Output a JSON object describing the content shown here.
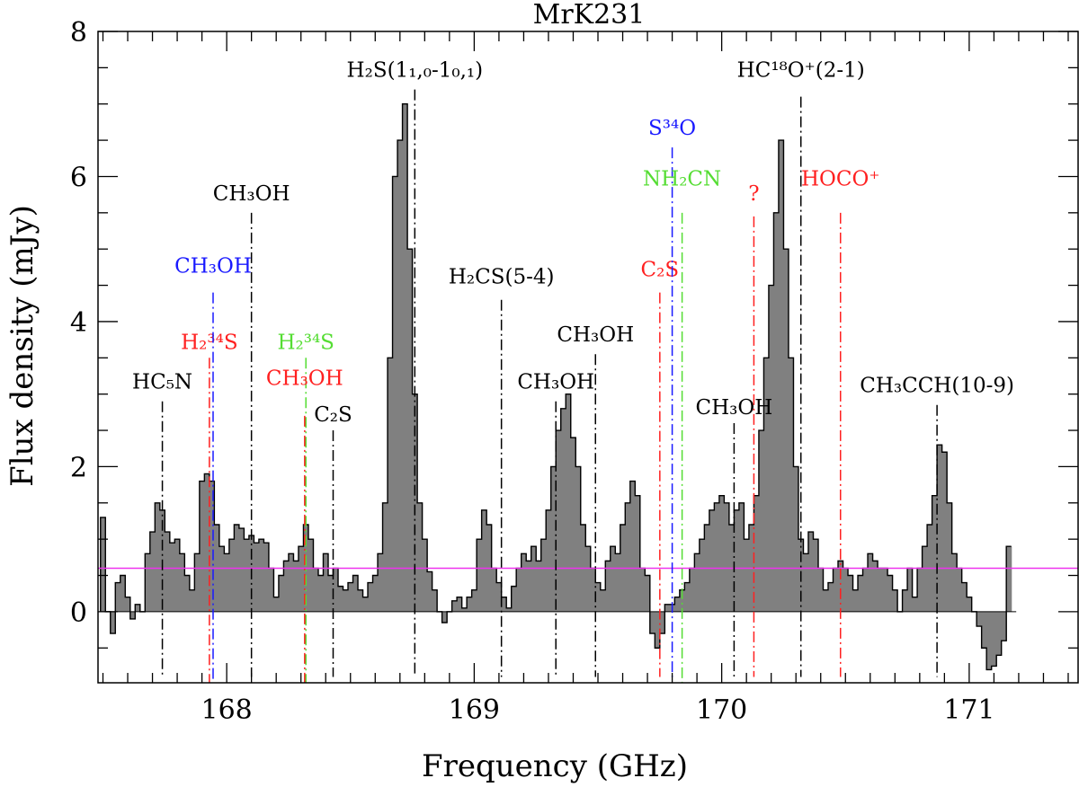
{
  "chart_data": {
    "type": "bar",
    "title": "MrK231",
    "xlabel": "Frequency (GHz)",
    "ylabel": "Flux density (mJy)",
    "xlim": [
      167.48,
      171.44
    ],
    "ylim": [
      -0.98,
      8.0
    ],
    "x_ticks": [
      168,
      169,
      170,
      171
    ],
    "y_ticks": [
      0,
      2,
      4,
      6,
      8
    ],
    "baseline": 0.6,
    "colors": {
      "fill": "#808080",
      "outline": "#000000",
      "baseline": "#ee33ee",
      "black": "#000000",
      "red": "#ff2020",
      "blue": "#1a1aff",
      "green": "#55dd33"
    },
    "series": [
      {
        "type": "histogram",
        "x": [
          167.5,
          167.52,
          167.54,
          167.56,
          167.58,
          167.6,
          167.62,
          167.64,
          167.66,
          167.68,
          167.7,
          167.72,
          167.74,
          167.76,
          167.78,
          167.8,
          167.82,
          167.84,
          167.86,
          167.88,
          167.9,
          167.92,
          167.94,
          167.96,
          167.98,
          168.0,
          168.02,
          168.04,
          168.06,
          168.08,
          168.1,
          168.12,
          168.14,
          168.16,
          168.18,
          168.2,
          168.22,
          168.24,
          168.26,
          168.28,
          168.3,
          168.32,
          168.34,
          168.36,
          168.38,
          168.4,
          168.42,
          168.44,
          168.46,
          168.48,
          168.5,
          168.52,
          168.54,
          168.56,
          168.58,
          168.6,
          168.62,
          168.64,
          168.66,
          168.68,
          168.7,
          168.72,
          168.74,
          168.76,
          168.78,
          168.8,
          168.82,
          168.84,
          168.86,
          168.88,
          168.9,
          168.92,
          168.94,
          168.96,
          168.98,
          169.0,
          169.02,
          169.04,
          169.06,
          169.08,
          169.1,
          169.12,
          169.14,
          169.16,
          169.18,
          169.2,
          169.22,
          169.24,
          169.26,
          169.28,
          169.3,
          169.32,
          169.34,
          169.36,
          169.38,
          169.4,
          169.42,
          169.44,
          169.46,
          169.48,
          169.5,
          169.52,
          169.54,
          169.56,
          169.58,
          169.6,
          169.62,
          169.64,
          169.66,
          169.68,
          169.7,
          169.72,
          169.74,
          169.76,
          169.78,
          169.8,
          169.82,
          169.84,
          169.86,
          169.88,
          169.9,
          169.92,
          169.94,
          169.96,
          169.98,
          170.0,
          170.02,
          170.04,
          170.06,
          170.08,
          170.1,
          170.12,
          170.14,
          170.16,
          170.18,
          170.2,
          170.22,
          170.24,
          170.26,
          170.28,
          170.3,
          170.32,
          170.34,
          170.36,
          170.38,
          170.4,
          170.42,
          170.44,
          170.46,
          170.48,
          170.5,
          170.52,
          170.54,
          170.56,
          170.58,
          170.6,
          170.62,
          170.64,
          170.66,
          170.68,
          170.7,
          170.72,
          170.74,
          170.76,
          170.78,
          170.8,
          170.82,
          170.84,
          170.86,
          170.88,
          170.9,
          170.92,
          170.94,
          170.96,
          170.98,
          171.0,
          171.02,
          171.04,
          171.06,
          171.08,
          171.1,
          171.12,
          171.14,
          171.16,
          171.18
        ],
        "y": [
          1.3,
          0.0,
          -0.3,
          0.4,
          0.5,
          0.2,
          -0.1,
          0.1,
          0.0,
          0.8,
          1.1,
          1.5,
          1.4,
          1.1,
          0.95,
          1.0,
          0.8,
          0.5,
          0.3,
          0.8,
          1.8,
          1.9,
          1.8,
          1.2,
          0.9,
          0.8,
          1.0,
          1.2,
          1.15,
          1.0,
          1.05,
          0.95,
          1.0,
          0.95,
          0.6,
          0.2,
          0.5,
          0.7,
          0.8,
          0.7,
          0.9,
          1.2,
          1.0,
          0.6,
          0.5,
          0.8,
          0.5,
          0.6,
          0.35,
          0.3,
          0.4,
          0.5,
          0.3,
          0.2,
          0.4,
          0.5,
          0.8,
          1.5,
          3.5,
          6.0,
          6.5,
          7.0,
          5.0,
          3.0,
          1.5,
          1.0,
          0.55,
          0.3,
          0.0,
          -0.15,
          0.0,
          0.15,
          0.2,
          0.05,
          0.2,
          0.3,
          1.0,
          1.4,
          1.2,
          0.6,
          0.4,
          0.2,
          0.05,
          0.35,
          0.6,
          0.8,
          0.7,
          0.9,
          0.7,
          1.0,
          1.4,
          2.0,
          2.5,
          2.8,
          3.0,
          2.4,
          2.0,
          1.2,
          0.9,
          0.6,
          0.4,
          0.3,
          0.7,
          0.9,
          0.8,
          1.2,
          1.5,
          1.8,
          1.6,
          0.6,
          0.5,
          -0.3,
          -0.5,
          -0.3,
          0.1,
          0.1,
          0.2,
          0.3,
          0.4,
          0.6,
          0.8,
          1.0,
          1.2,
          1.4,
          1.5,
          1.6,
          1.5,
          1.2,
          1.4,
          1.5,
          1.0,
          1.2,
          1.6,
          2.5,
          3.5,
          4.5,
          5.5,
          6.5,
          5.0,
          3.5,
          2.0,
          1.0,
          0.8,
          1.1,
          1.0,
          0.6,
          0.3,
          0.4,
          0.6,
          0.7,
          0.6,
          0.5,
          0.3,
          0.5,
          0.6,
          0.8,
          0.7,
          0.6,
          0.6,
          0.5,
          0.3,
          0.0,
          0.3,
          0.6,
          0.2,
          0.6,
          0.9,
          1.2,
          1.6,
          2.3,
          2.2,
          1.5,
          0.8,
          0.6,
          0.4,
          0.2,
          0.0,
          -0.2,
          -0.5,
          -0.8,
          -0.75,
          -0.6,
          -0.4,
          0.9
        ]
      }
    ],
    "line_markers": [
      {
        "label": "HC5N",
        "text": "HC₅N",
        "freq": 167.74,
        "color": "black",
        "top": 2.9,
        "bottom": -0.9,
        "label_y": 3.0
      },
      {
        "label": "H2 34S",
        "text": "H₂³⁴S",
        "freq": 167.93,
        "color": "red",
        "top": 3.5,
        "bottom": -0.98,
        "label_y": 3.55
      },
      {
        "label": "CH3OH",
        "text": "CH₃OH",
        "freq": 167.945,
        "color": "blue",
        "top": 4.4,
        "bottom": -0.98,
        "label_y": 4.6
      },
      {
        "label": "CH3OH",
        "text": "CH₃OH",
        "freq": 168.1,
        "color": "black",
        "top": 5.5,
        "bottom": -0.9,
        "label_y": 5.6
      },
      {
        "label": "H2 34S",
        "text": "H₂³⁴S",
        "freq": 168.32,
        "color": "green",
        "top": 3.5,
        "bottom": -0.98,
        "label_y": 3.55
      },
      {
        "label": "CH3OH",
        "text": "CH₃OH",
        "freq": 168.315,
        "color": "red",
        "top": 2.7,
        "bottom": -0.98,
        "label_y": 3.05
      },
      {
        "label": "C2S",
        "text": "C₂S",
        "freq": 168.43,
        "color": "black",
        "top": 2.5,
        "bottom": -0.9,
        "label_y": 2.55
      },
      {
        "label": "H2S(11,0-10,1)",
        "text": "H₂S(1₁,₀-1₀,₁)",
        "freq": 168.76,
        "color": "black",
        "top": 7.2,
        "bottom": -0.9,
        "label_y": 7.3
      },
      {
        "label": "H2CS(5-4)",
        "text": "H₂CS(5-4)",
        "freq": 169.11,
        "color": "black",
        "top": 4.3,
        "bottom": -0.9,
        "label_y": 4.45
      },
      {
        "label": "CH3OH",
        "text": "CH₃OH",
        "freq": 169.33,
        "color": "black",
        "top": 2.9,
        "bottom": -0.9,
        "label_y": 3.0
      },
      {
        "label": "CH3OH",
        "text": "CH₃OH",
        "freq": 169.49,
        "color": "black",
        "top": 3.55,
        "bottom": -0.9,
        "label_y": 3.65
      },
      {
        "label": "C2S",
        "text": "C₂S",
        "freq": 169.75,
        "color": "red",
        "top": 4.4,
        "bottom": -0.9,
        "label_y": 4.55
      },
      {
        "label": "S34O",
        "text": "S³⁴O",
        "freq": 169.8,
        "color": "blue",
        "top": 6.4,
        "bottom": -0.9,
        "label_y": 6.5
      },
      {
        "label": "NH2CN",
        "text": "NH₂CN",
        "freq": 169.84,
        "color": "green",
        "top": 5.5,
        "bottom": -0.98,
        "label_y": 5.8
      },
      {
        "label": "CH3OH",
        "text": "CH₃OH",
        "freq": 170.05,
        "color": "black",
        "top": 2.6,
        "bottom": -0.9,
        "label_y": 2.65
      },
      {
        "label": "?",
        "text": "?",
        "freq": 170.13,
        "color": "red",
        "top": 5.45,
        "bottom": -0.9,
        "label_y": 5.6
      },
      {
        "label": "HC18O+(2-1)",
        "text": "HC¹⁸O⁺(2-1)",
        "freq": 170.32,
        "color": "black",
        "top": 7.1,
        "bottom": -0.9,
        "label_y": 7.3
      },
      {
        "label": "HOCO+",
        "text": "HOCO⁺",
        "freq": 170.48,
        "color": "red",
        "top": 5.5,
        "bottom": -0.9,
        "label_y": 5.8
      },
      {
        "label": "CH3CCH(10-9)",
        "text": "CH₃CCH(10-9)",
        "freq": 170.87,
        "color": "black",
        "top": 2.85,
        "bottom": -0.9,
        "label_y": 2.95
      }
    ]
  }
}
